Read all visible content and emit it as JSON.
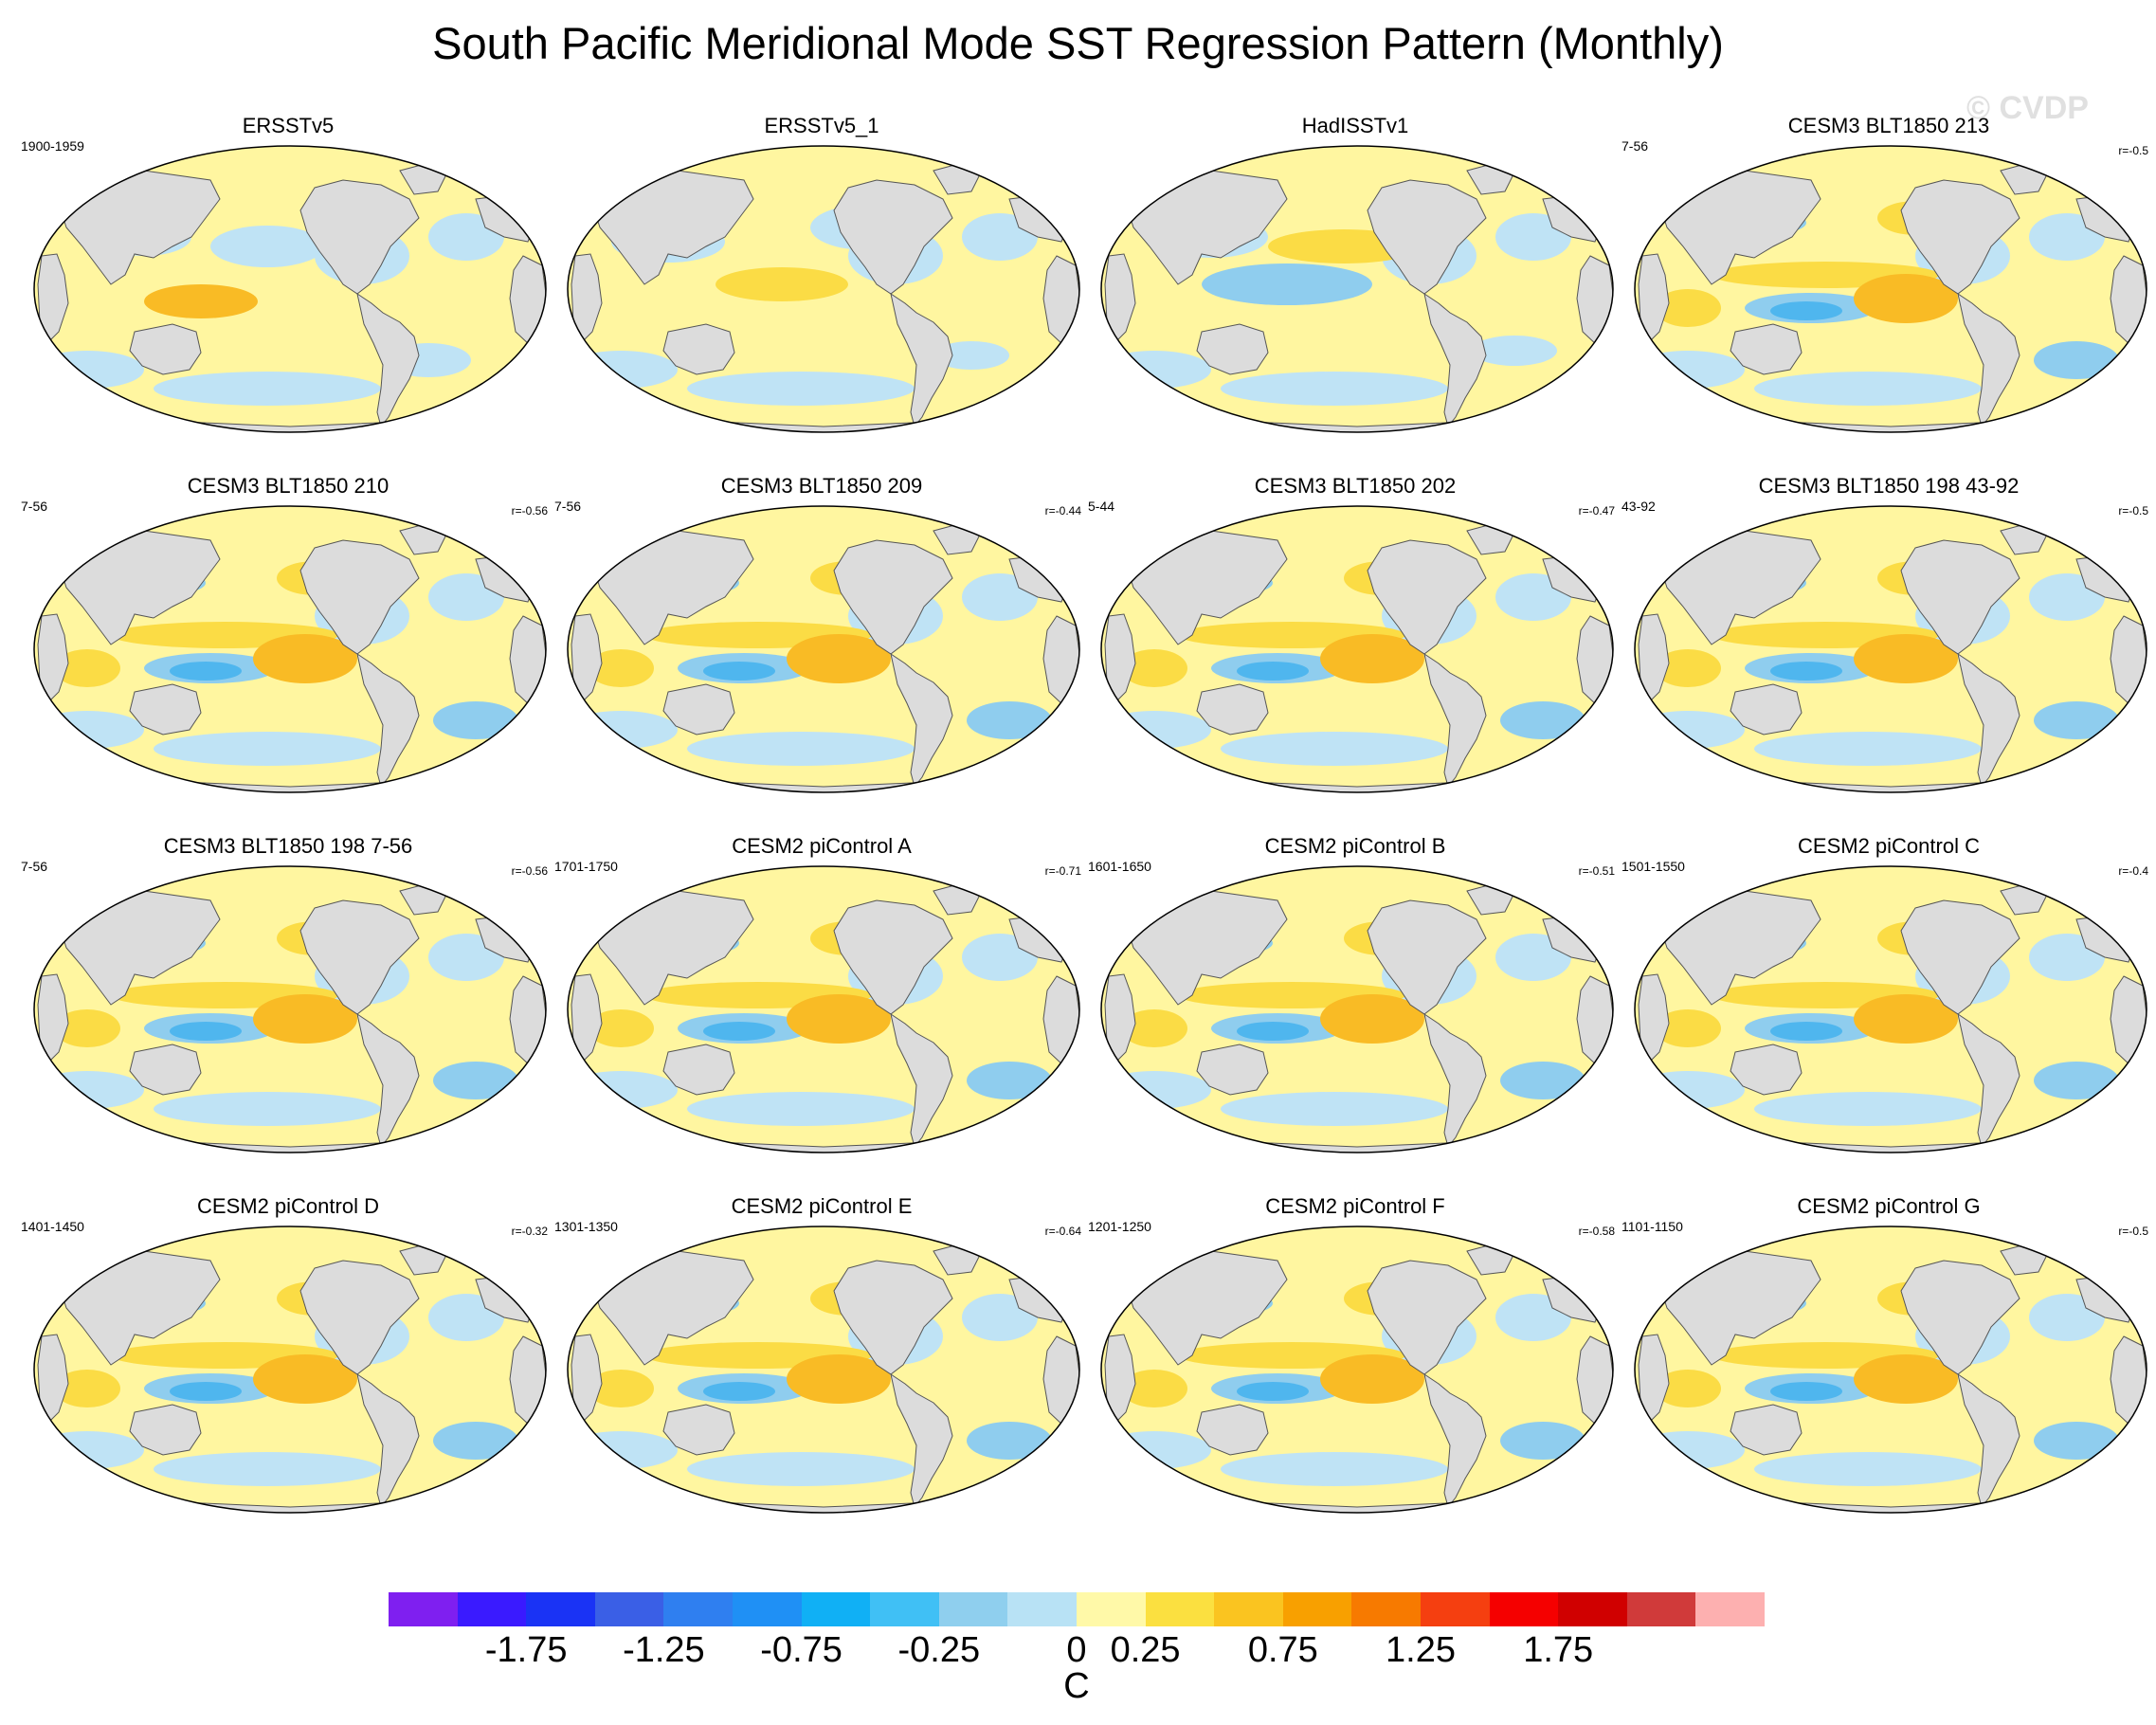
{
  "title": "South Pacific Meridional Mode SST Regression Pattern (Monthly)",
  "watermark": "© CVDP",
  "panels": [
    {
      "title": "ERSSTv5",
      "left": "1900-1959",
      "right": ""
    },
    {
      "title": "ERSSTv5_1",
      "left": "",
      "right": ""
    },
    {
      "title": "HadISSTv1",
      "left": "",
      "right": ""
    },
    {
      "title": "CESM3 BLT1850 213",
      "left": "7-56",
      "right": "r=-0.5"
    },
    {
      "title": "CESM3 BLT1850 210",
      "left": "7-56",
      "right": "r=-0.56"
    },
    {
      "title": "CESM3 BLT1850 209",
      "left": "7-56",
      "right": "r=-0.44"
    },
    {
      "title": "CESM3 BLT1850 202",
      "left": "5-44",
      "right": "r=-0.47"
    },
    {
      "title": "CESM3 BLT1850 198 43-92",
      "left": "43-92",
      "right": "r=-0.5"
    },
    {
      "title": "CESM3 BLT1850 198 7-56",
      "left": "7-56",
      "right": "r=-0.56"
    },
    {
      "title": "CESM2 piControl A",
      "left": "1701-1750",
      "right": "r=-0.71"
    },
    {
      "title": "CESM2 piControl B",
      "left": "1601-1650",
      "right": "r=-0.51"
    },
    {
      "title": "CESM2 piControl C",
      "left": "1501-1550",
      "right": "r=-0.4"
    },
    {
      "title": "CESM2 piControl D",
      "left": "1401-1450",
      "right": "r=-0.32"
    },
    {
      "title": "CESM2 piControl E",
      "left": "1301-1350",
      "right": "r=-0.64"
    },
    {
      "title": "CESM2 piControl F",
      "left": "1201-1250",
      "right": "r=-0.58"
    },
    {
      "title": "CESM2 piControl G",
      "left": "1101-1150",
      "right": "r=-0.5"
    }
  ],
  "colorbar": {
    "unit": "C",
    "colors": [
      "#7f1ff0",
      "#3a1aff",
      "#1a33f5",
      "#3a5fe6",
      "#2f7ff0",
      "#1f90f5",
      "#10b0f5",
      "#40c0f5",
      "#8fcfee",
      "#b8e2f5",
      "#fff9a8",
      "#fbe040",
      "#fac420",
      "#f8a000",
      "#f77a00",
      "#f53f10",
      "#f50000",
      "#d00000",
      "#d03a3a",
      "#fdb0b0"
    ],
    "labels": [
      "-1.75",
      "-1.25",
      "-0.75",
      "-0.25",
      "0",
      "0.25",
      "0.75",
      "1.25",
      "1.75"
    ]
  },
  "colors": {
    "land": "#dcdcdc",
    "warm_weak": "#fff6a0",
    "warm": "#fbdc45",
    "warm_strong": "#f9bb25",
    "cool_weak": "#bfe3f5",
    "cool": "#8fcdee",
    "cool_strong": "#4fb6ee"
  }
}
